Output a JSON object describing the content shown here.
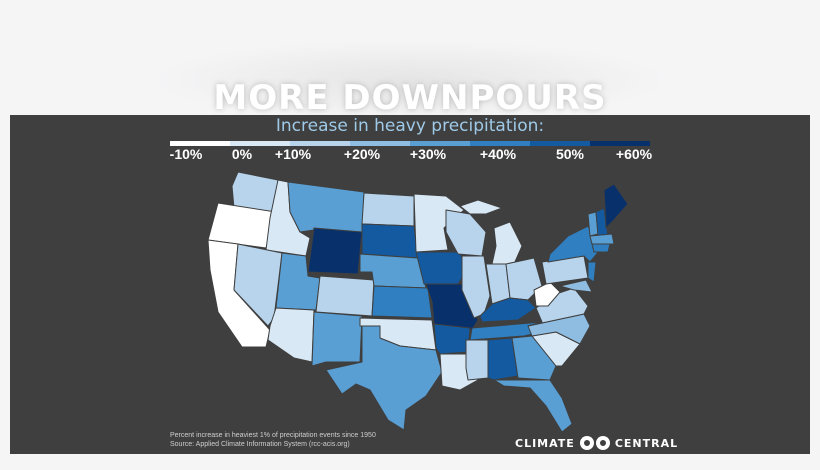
{
  "title": "MORE DOWNPOURS",
  "subtitle": "Increase in heavy precipitation:",
  "legend": {
    "labels": [
      "-10%",
      "0%",
      "+10%",
      "+20%",
      "+30%",
      "+40%",
      "50%",
      "+60%"
    ],
    "colors": [
      "#ffffff",
      "#d9e8f5",
      "#b7d4ec",
      "#8fbde2",
      "#5a9fd4",
      "#2f7fc1",
      "#145aa0",
      "#08306b"
    ]
  },
  "footnote": {
    "line1": "Percent increase in heaviest 1% of precipitation events since 1950",
    "line2": "Source: Applied Climate Information System (rcc-acis.org)"
  },
  "logo": {
    "left": "CLIMATE",
    "right": "CENTRAL"
  }
}
